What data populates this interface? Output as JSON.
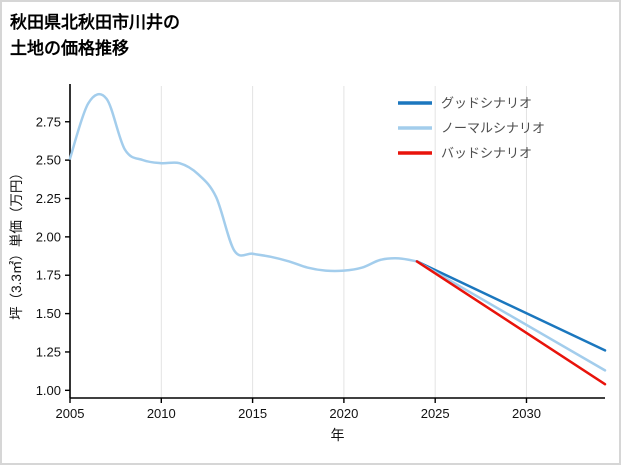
{
  "title": {
    "line1": "秋田県北秋田市川井の",
    "line2": "土地の価格推移"
  },
  "chart_data": {
    "type": "line",
    "title": "秋田県北秋田市川井の土地の価格推移",
    "xlabel": "年",
    "ylabel": "坪（3.3㎡）単価（万円）",
    "xlim": [
      2005,
      2034.3
    ],
    "ylim": [
      0.95,
      2.97
    ],
    "x_ticks": [
      2005,
      2010,
      2015,
      2020,
      2025,
      2030
    ],
    "y_ticks": [
      1.0,
      1.25,
      1.5,
      1.75,
      2.0,
      2.25,
      2.5,
      2.75
    ],
    "grid": "vertical-only",
    "legend_position": "top-right",
    "axis_color": "#000000",
    "grid_color": "#e3e3e3",
    "history": {
      "color": "#a3cdec",
      "x": [
        2005,
        2006,
        2007,
        2008,
        2009,
        2010,
        2011,
        2012,
        2013,
        2014,
        2015,
        2016,
        2017,
        2018,
        2019,
        2020,
        2021,
        2022,
        2023,
        2024
      ],
      "y": [
        2.51,
        2.87,
        2.9,
        2.57,
        2.5,
        2.48,
        2.48,
        2.41,
        2.26,
        1.91,
        1.89,
        1.87,
        1.84,
        1.8,
        1.78,
        1.78,
        1.8,
        1.85,
        1.86,
        1.84
      ]
    },
    "scenarios": [
      {
        "label": "グッドシナリオ",
        "color": "#1b77be",
        "x": [
          2024,
          2034.3
        ],
        "y": [
          1.84,
          1.26
        ]
      },
      {
        "label": "ノーマルシナリオ",
        "color": "#a3cdec",
        "x": [
          2024,
          2034.3
        ],
        "y": [
          1.84,
          1.13
        ]
      },
      {
        "label": "バッドシナリオ",
        "color": "#e8130b",
        "x": [
          2024,
          2034.3
        ],
        "y": [
          1.84,
          1.04
        ]
      }
    ]
  }
}
